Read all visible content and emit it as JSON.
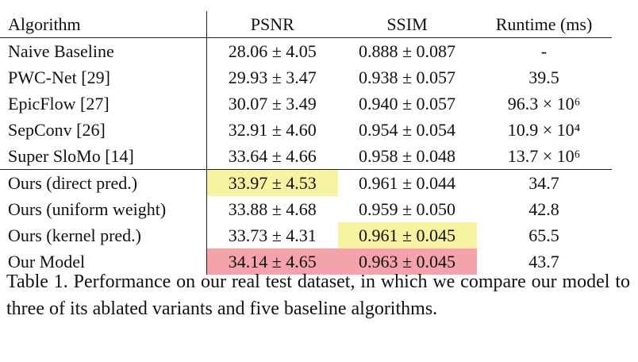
{
  "table": {
    "header": [
      "Algorithm",
      "PSNR",
      "SSIM",
      "Runtime (ms)"
    ],
    "rows": [
      [
        "Naive Baseline",
        "28.06 ± 4.05",
        "0.888 ± 0.087",
        "-"
      ],
      [
        "PWC-Net [29]",
        "29.93 ± 3.47",
        "0.938 ± 0.057",
        "39.5"
      ],
      [
        "EpicFlow [27]",
        "30.07 ± 3.49",
        "0.940 ± 0.057",
        "96.3 × 10⁶"
      ],
      [
        "SepConv [26]",
        "32.91 ± 4.60",
        "0.954 ± 0.054",
        "10.9 × 10⁴"
      ],
      [
        "Super SloMo [14]",
        "33.64 ± 4.66",
        "0.958 ± 0.048",
        "13.7 × 10⁶"
      ],
      [
        "Ours (direct pred.)",
        "33.97 ± 4.53",
        "0.961 ± 0.044",
        "34.7"
      ],
      [
        "Ours (uniform weight)",
        "33.88 ± 4.68",
        "0.959 ± 0.050",
        "42.8"
      ],
      [
        "Ours (kernel pred.)",
        "33.73 ± 4.31",
        "0.961 ± 0.045",
        "65.5"
      ],
      [
        "Our Model",
        "34.14 ± 4.65",
        "0.963 ± 0.045",
        "43.7"
      ]
    ]
  },
  "caption": "Table 1. Performance on our real test dataset, in which we compare our model to three of its ablated variants and five baseline algorithms."
}
